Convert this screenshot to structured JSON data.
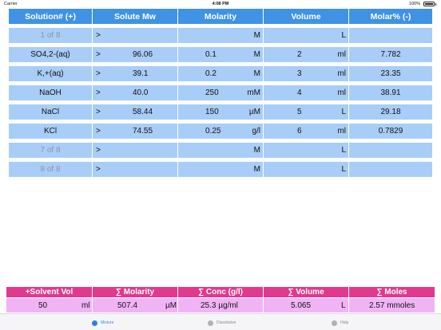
{
  "status_bar": {
    "carrier": "Carrier",
    "time": "4:08 PM",
    "battery": "100%"
  },
  "table": {
    "headers": [
      "Solution# (+)",
      "Solute Mw",
      "Molarity",
      "Volume",
      "Molar% (-)"
    ],
    "rows": [
      {
        "name": "1 of 8",
        "placeholder": true,
        "arrow": ">",
        "mw": "",
        "molarity": "",
        "molarity_unit": "M",
        "volume": "",
        "volume_unit": "L",
        "molar_pct": ""
      },
      {
        "name": "SO4,2-(aq)",
        "placeholder": false,
        "arrow": ">",
        "mw": "96.06",
        "molarity": "0.1",
        "molarity_unit": "M",
        "volume": "2",
        "volume_unit": "ml",
        "molar_pct": "7.782"
      },
      {
        "name": "K,+(aq)",
        "placeholder": false,
        "arrow": ">",
        "mw": "39.1",
        "molarity": "0.2",
        "molarity_unit": "M",
        "volume": "3",
        "volume_unit": "ml",
        "molar_pct": "23.35"
      },
      {
        "name": "NaOH",
        "placeholder": false,
        "arrow": ">",
        "mw": "40.0",
        "molarity": "250",
        "molarity_unit": "mM",
        "volume": "4",
        "volume_unit": "ml",
        "molar_pct": "38.91"
      },
      {
        "name": "NaCl",
        "placeholder": false,
        "arrow": ">",
        "mw": "58.44",
        "molarity": "150",
        "molarity_unit": "µM",
        "volume": "5",
        "volume_unit": "L",
        "molar_pct": "29.18"
      },
      {
        "name": "KCl",
        "placeholder": false,
        "arrow": ">",
        "mw": "74.55",
        "molarity": "0.25",
        "molarity_unit": "g/l",
        "volume": "6",
        "volume_unit": "ml",
        "molar_pct": "0.7829"
      },
      {
        "name": "7 of 8",
        "placeholder": true,
        "arrow": ">",
        "mw": "",
        "molarity": "",
        "molarity_unit": "M",
        "volume": "",
        "volume_unit": "L",
        "molar_pct": ""
      },
      {
        "name": "8 of 8",
        "placeholder": true,
        "arrow": ">",
        "mw": "",
        "molarity": "",
        "molarity_unit": "M",
        "volume": "",
        "volume_unit": "L",
        "molar_pct": ""
      }
    ]
  },
  "summary": {
    "headers": [
      "+Solvent Vol",
      "∑ Molarity",
      "∑  Conc (g/l)",
      "∑ Volume",
      "∑ Moles"
    ],
    "solvent_vol": "50",
    "solvent_unit": "ml",
    "molarity": "507.4",
    "molarity_unit": "µM",
    "conc": "25.3 µg/ml",
    "volume": "5.065",
    "volume_unit": "L",
    "moles": "2.57 mmoles"
  },
  "tabs": [
    {
      "label": "Mixture",
      "active": true
    },
    {
      "label": "Dissolution",
      "active": false
    },
    {
      "label": "Help",
      "active": false
    }
  ],
  "colors": {
    "header_blue": "#3f92e4",
    "cell_blue": "#a8cdf7",
    "summary_pink": "#e2388e",
    "summary_cell": "#f0b4f5",
    "active_tab": "#2c7df0"
  }
}
